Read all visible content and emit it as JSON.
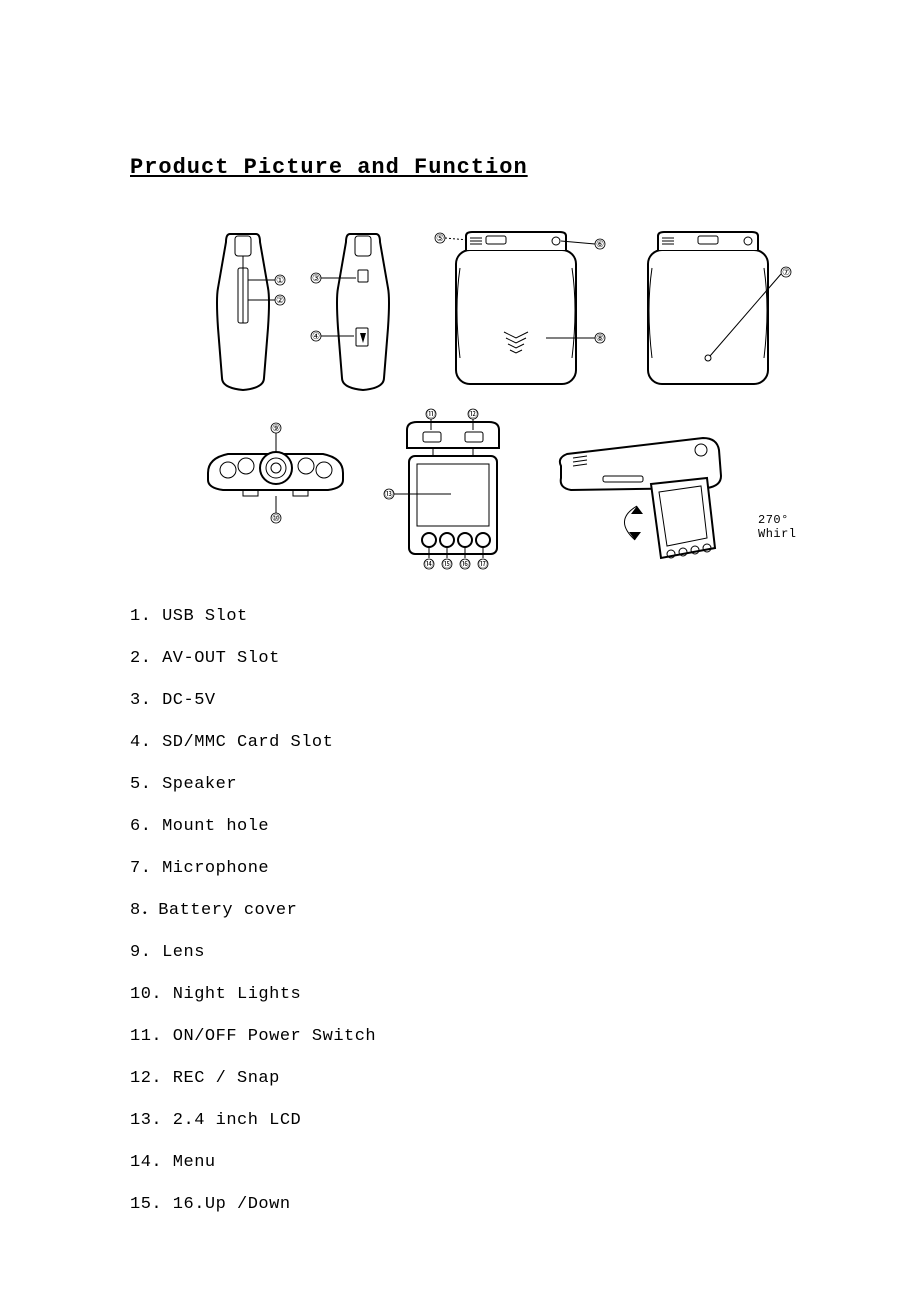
{
  "title": "Product Picture and Function",
  "whirl_label": "270° Whirl",
  "callouts": {
    "v1_a": "①",
    "v1_b": "②",
    "v2_a": "③",
    "v2_b": "④",
    "v3_a": "⑤",
    "v3_b": "⑥",
    "v3_c": "⑧",
    "v4_a": "⑦",
    "v5_a": "⑨",
    "v5_b": "⑩",
    "v6_a": "⑪",
    "v6_b": "⑫",
    "v6_c": "⑬",
    "v6_d1": "⑭",
    "v6_d2": "⑮",
    "v6_d3": "⑯",
    "v6_d4": "⑰"
  },
  "functions": [
    "1. USB Slot",
    "2. AV-OUT Slot",
    "3. DC-5V",
    "4. SD/MMC Card Slot",
    "5. Speaker",
    "6. Mount hole",
    "7. Microphone",
    "8．Battery cover",
    "9. Lens",
    "10. Night Lights",
    "11. ON/OFF Power Switch",
    "12. REC / Snap",
    "13. 2.4 inch LCD",
    "14. Menu",
    "15. 16.Up /Down"
  ],
  "style": {
    "page_bg": "#ffffff",
    "text_color": "#000000",
    "title_fontsize": 22,
    "body_fontsize": 17,
    "whirl_fontsize": 12,
    "stroke": "#000000",
    "stroke_w_main": 2,
    "stroke_w_thin": 1
  }
}
